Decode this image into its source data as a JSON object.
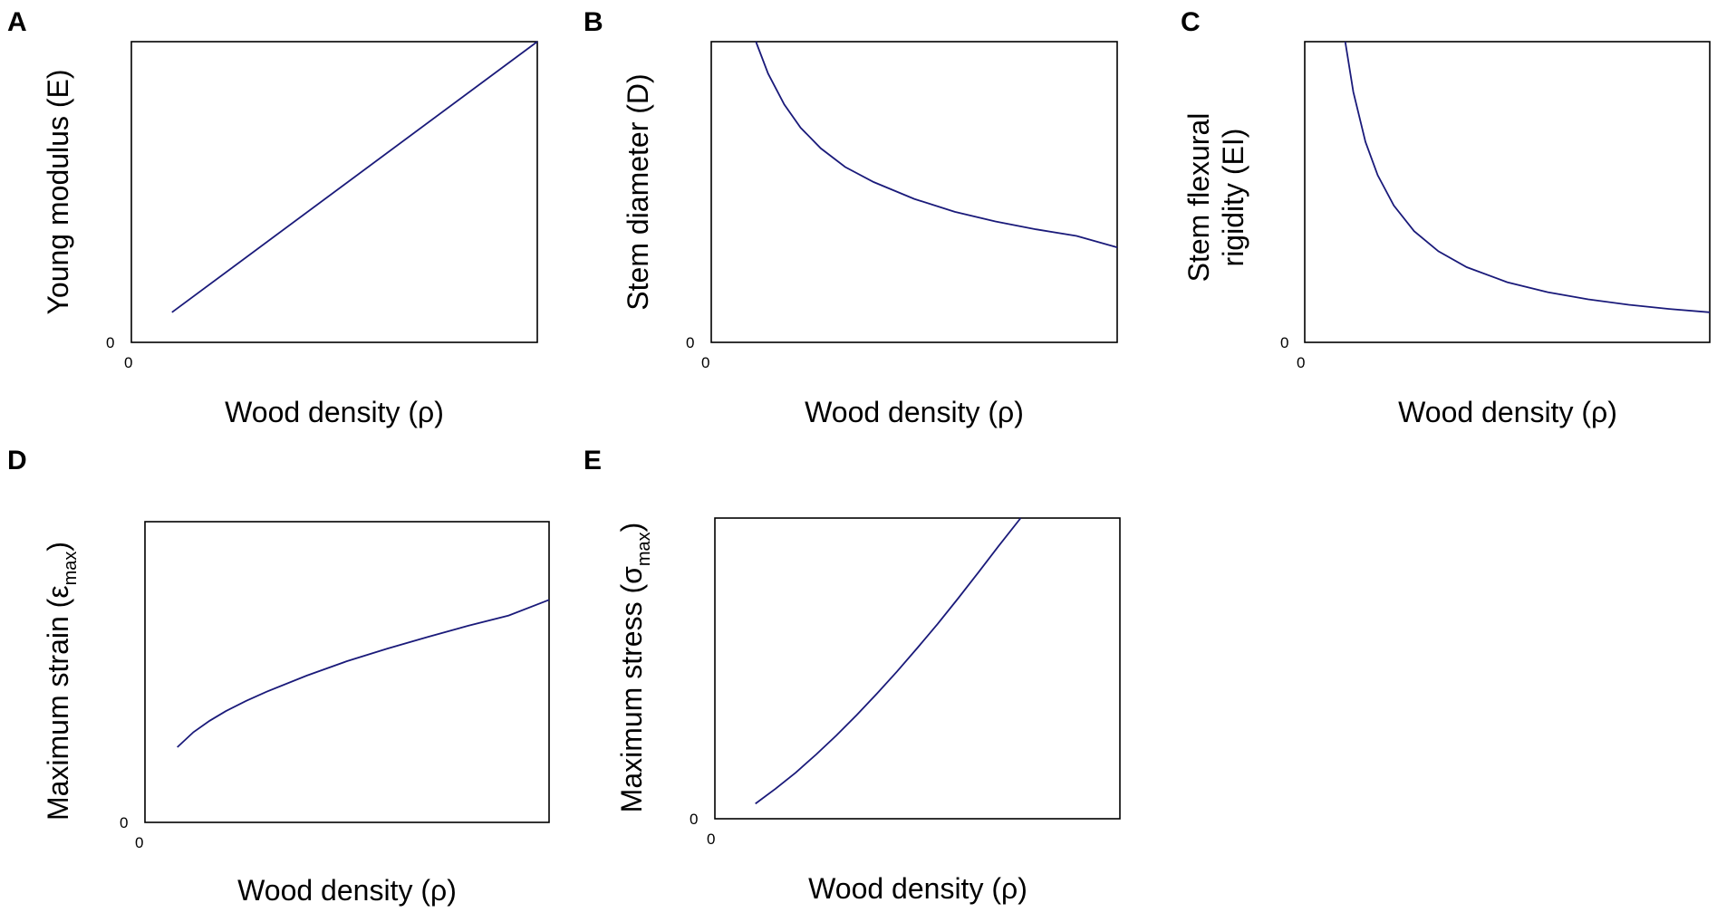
{
  "chart_data": [
    {
      "panel": "A",
      "type": "line",
      "xlabel": "Wood density (ρ)",
      "ylabel": "Young modulus (E)",
      "x_tick_labels": [
        "0"
      ],
      "y_tick_labels": [
        "0"
      ],
      "xlim": [
        0,
        1
      ],
      "ylim": [
        0,
        1
      ],
      "series": [
        {
          "color": "#1a1a7a",
          "x": [
            0.1,
            1.0
          ],
          "y": [
            0.1,
            1.0
          ]
        }
      ]
    },
    {
      "panel": "B",
      "type": "line",
      "xlabel": "Wood density (ρ)",
      "ylabel": "Stem diameter (D)",
      "x_tick_labels": [
        "0"
      ],
      "y_tick_labels": [
        "0"
      ],
      "xlim": [
        0,
        1
      ],
      "ylim": [
        0,
        1
      ],
      "series": [
        {
          "color": "#1a1a7a",
          "x": [
            0.11,
            0.14,
            0.18,
            0.22,
            0.27,
            0.33,
            0.4,
            0.5,
            0.6,
            0.7,
            0.8,
            0.9,
            1.0
          ],
          "y": [
            1.0,
            0.894,
            0.791,
            0.714,
            0.645,
            0.583,
            0.533,
            0.477,
            0.434,
            0.402,
            0.376,
            0.354,
            0.316
          ]
        }
      ]
    },
    {
      "panel": "C",
      "type": "line",
      "xlabel": "Wood density (ρ)",
      "ylabel": "Stem flexural rigidity (EI)",
      "ylabel_lines": [
        "Stem flexural",
        "rigidity (EI)"
      ],
      "x_tick_labels": [
        "0"
      ],
      "y_tick_labels": [
        "0"
      ],
      "xlim": [
        0,
        1
      ],
      "ylim": [
        0,
        1
      ],
      "series": [
        {
          "color": "#1a1a7a",
          "x": [
            0.1,
            0.12,
            0.15,
            0.18,
            0.22,
            0.27,
            0.33,
            0.4,
            0.5,
            0.6,
            0.7,
            0.8,
            0.9,
            1.0
          ],
          "y": [
            1.0,
            0.833,
            0.667,
            0.556,
            0.455,
            0.37,
            0.303,
            0.25,
            0.2,
            0.167,
            0.143,
            0.125,
            0.111,
            0.1
          ]
        }
      ]
    },
    {
      "panel": "D",
      "type": "line",
      "xlabel": "Wood density (ρ)",
      "ylabel": "Maximum strain (εmax)",
      "ylabel_parts": {
        "main": "Maximum strain (ε",
        "sub": "max",
        "close": ")"
      },
      "x_tick_labels": [
        "0"
      ],
      "y_tick_labels": [
        "0"
      ],
      "xlim": [
        0,
        1
      ],
      "ylim": [
        0,
        1
      ],
      "series": [
        {
          "color": "#1a1a7a",
          "x": [
            0.08,
            0.12,
            0.16,
            0.2,
            0.25,
            0.3,
            0.4,
            0.5,
            0.6,
            0.7,
            0.8,
            0.9,
            1.0
          ],
          "y": [
            0.25,
            0.3,
            0.338,
            0.37,
            0.404,
            0.434,
            0.488,
            0.536,
            0.578,
            0.617,
            0.654,
            0.688,
            0.74
          ]
        }
      ]
    },
    {
      "panel": "E",
      "type": "line",
      "xlabel": "Wood density (ρ)",
      "ylabel": "Maximum stress (σmax)",
      "ylabel_parts": {
        "main": "Maximum stress (σ",
        "sub": "max",
        "close": ")"
      },
      "x_tick_labels": [
        "0"
      ],
      "y_tick_labels": [
        "0"
      ],
      "xlim": [
        0,
        1
      ],
      "ylim": [
        0,
        1
      ],
      "series": [
        {
          "color": "#1a1a7a",
          "x": [
            0.1,
            0.15,
            0.2,
            0.25,
            0.3,
            0.35,
            0.4,
            0.45,
            0.5,
            0.55,
            0.6,
            0.65,
            0.7,
            0.755
          ],
          "y": [
            0.05,
            0.1,
            0.154,
            0.214,
            0.277,
            0.345,
            0.416,
            0.49,
            0.568,
            0.648,
            0.732,
            0.818,
            0.906,
            1.0
          ]
        }
      ]
    }
  ]
}
